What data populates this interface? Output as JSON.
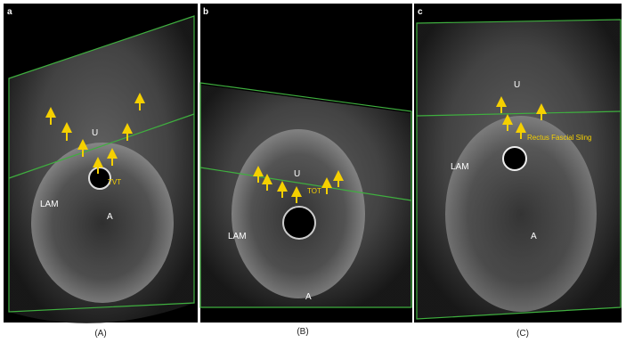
{
  "panels": [
    {
      "letter": "a",
      "labels": {
        "urethra": "U",
        "muscle": "LAM",
        "anus": "A",
        "sling": "TVT"
      },
      "caption": "(A)"
    },
    {
      "letter": "b",
      "labels": {
        "urethra": "U",
        "muscle": "LAM",
        "anus": "A",
        "sling": "TOT"
      },
      "caption": "(B)"
    },
    {
      "letter": "c",
      "labels": {
        "urethra": "U",
        "muscle": "LAM",
        "anus": "A",
        "sling": "Rectus Fascial Sling"
      },
      "caption": "(C)"
    }
  ]
}
